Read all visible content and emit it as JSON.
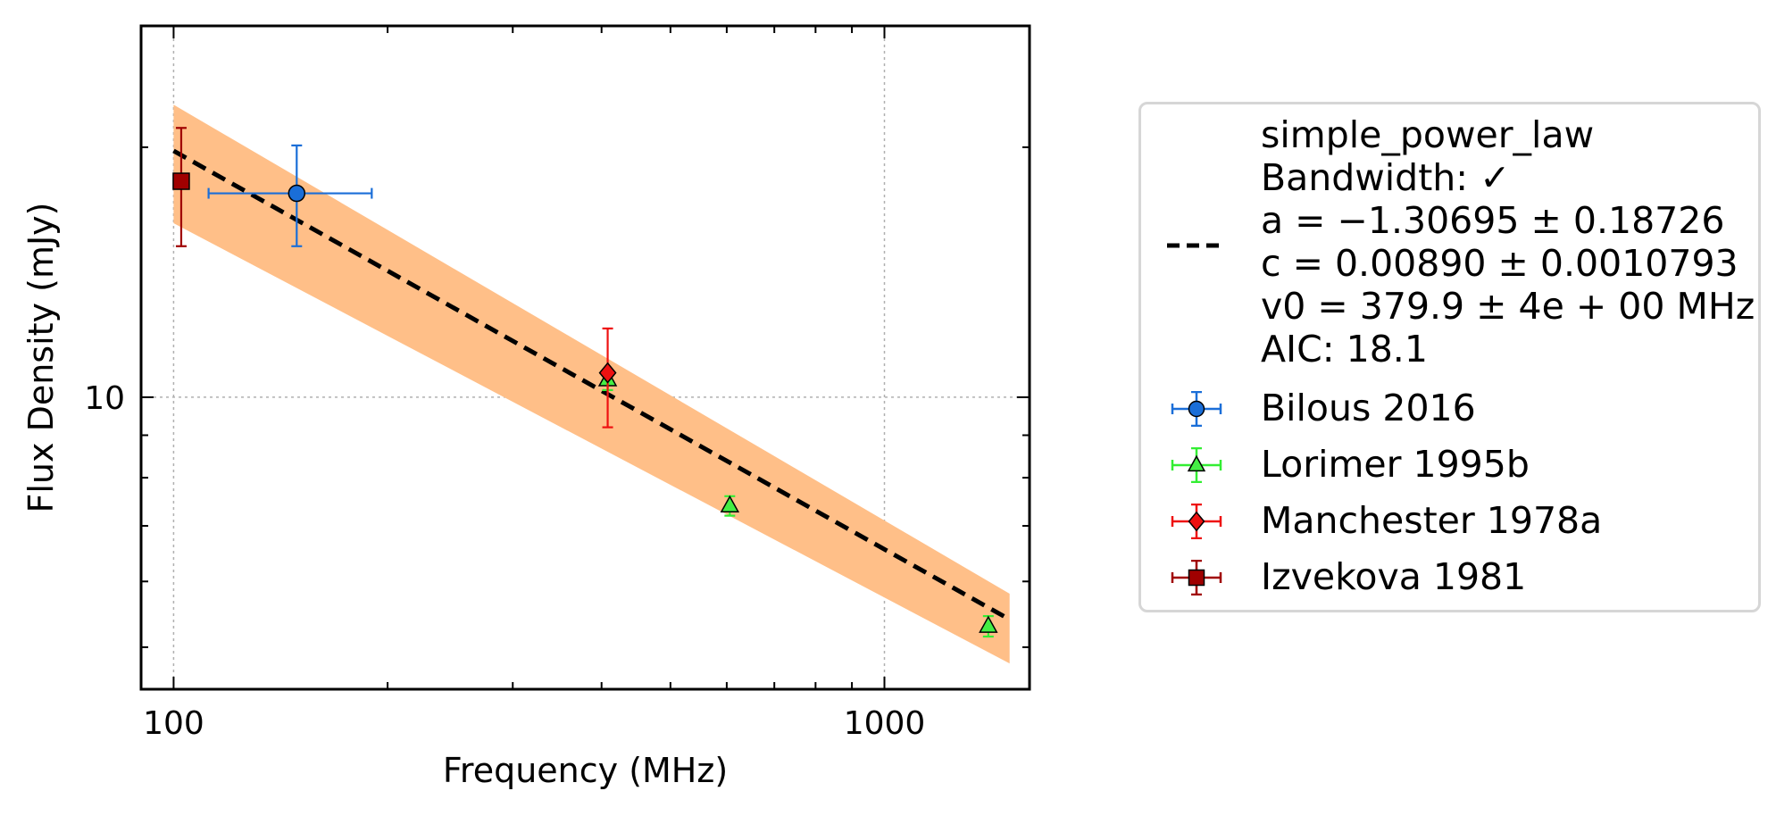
{
  "chart_data": {
    "type": "scatter",
    "xlabel": "Frequency (MHz)",
    "ylabel": "Flux Density (mJy)",
    "x_scale": "log",
    "y_scale": "log",
    "xlim": [
      90,
      1600
    ],
    "ylim": [
      4.45,
      28
    ],
    "x_ticks": [
      {
        "value": 100,
        "label": "100"
      },
      {
        "value": 1000,
        "label": "1000"
      }
    ],
    "y_ticks": [
      {
        "value": 10,
        "label": "10"
      }
    ],
    "grid": true,
    "legend_position": "outside-right",
    "fit": {
      "model": "simple_power_law",
      "label_lines": [
        "simple_power_law",
        "Bandwidth: ✓",
        "a = −1.30695 ± 0.18726",
        "c = 0.00890 ± 0.0010793",
        "v0 = 379.9 ± 4e + 00 MHz",
        "AIC: 18.1"
      ],
      "a": -1.30695,
      "c": 0.0089,
      "v0": 379.9,
      "line_x": [
        100,
        1500
      ],
      "line_y": [
        19.8,
        5.4
      ],
      "band_upper": [
        22.5,
        5.8
      ],
      "band_lower": [
        16.2,
        4.78
      ],
      "line_color": "#000000",
      "band_color": "#ffbf88"
    },
    "series": [
      {
        "name": "Bilous 2016",
        "marker": "circle",
        "color": "#1a6ed8",
        "edge": "#000000",
        "ecolor": "#1a6ed8",
        "points": [
          {
            "x": 149,
            "y": 17.6,
            "xerr": [
              37,
              41
            ],
            "yerr": [
              2.4,
              2.5
            ]
          }
        ]
      },
      {
        "name": "Lorimer 1995b",
        "marker": "triangle",
        "color": "#44ee44",
        "edge": "#000000",
        "ecolor": "#33ee33",
        "points": [
          {
            "x": 408,
            "y": 10.5,
            "xerr": [
              0,
              0
            ],
            "yerr": [
              0.3,
              0.3
            ]
          },
          {
            "x": 606,
            "y": 7.4,
            "xerr": [
              0,
              0
            ],
            "yerr": [
              0.2,
              0.2
            ]
          },
          {
            "x": 1400,
            "y": 5.3,
            "xerr": [
              0,
              0
            ],
            "yerr": [
              0.15,
              0.15
            ]
          }
        ]
      },
      {
        "name": "Manchester 1978a",
        "marker": "diamond",
        "color": "#ee1111",
        "edge": "#000000",
        "ecolor": "#ee1111",
        "points": [
          {
            "x": 408,
            "y": 10.7,
            "xerr": [
              0,
              0
            ],
            "yerr": [
              1.5,
              1.4
            ]
          }
        ]
      },
      {
        "name": "Izvekova 1981",
        "marker": "square",
        "color": "#a00000",
        "edge": "#000000",
        "ecolor": "#a00000",
        "points": [
          {
            "x": 102.5,
            "y": 18.2,
            "xerr": [
              0,
              0
            ],
            "yerr": [
              3.0,
              2.9
            ]
          }
        ]
      }
    ]
  }
}
